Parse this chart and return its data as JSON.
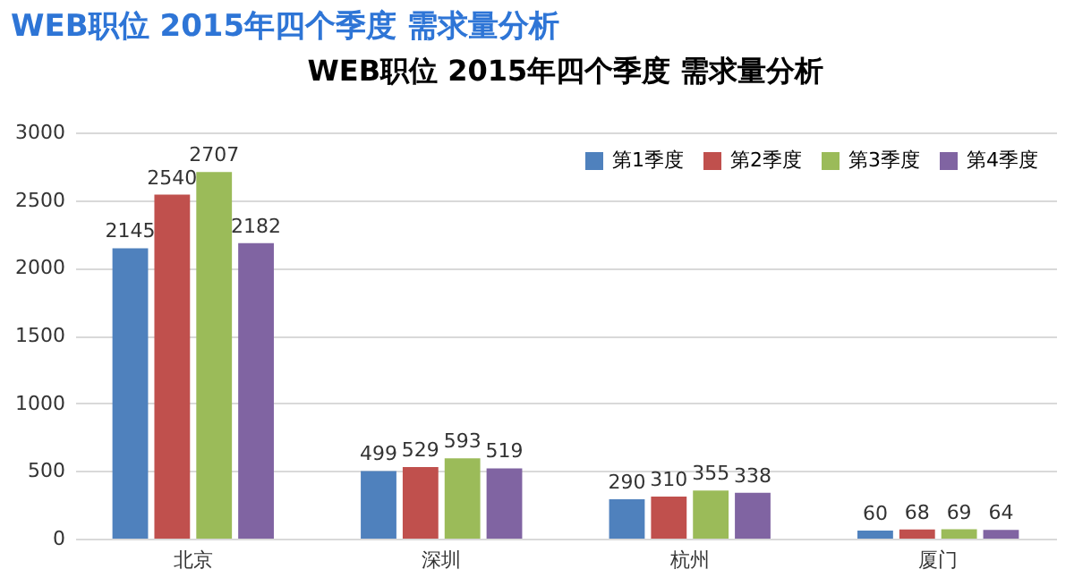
{
  "chart_data": {
    "type": "bar",
    "title": "WEB职位 2015年四个季度 需求量分析",
    "subtitle": "WEB职位 2015年四个季度 需求量分析",
    "categories": [
      "北京",
      "深圳",
      "杭州",
      "厦门"
    ],
    "series": [
      {
        "name": "第1季度",
        "color": "#4f81bd",
        "values": [
          2145,
          499,
          290,
          60
        ]
      },
      {
        "name": "第2季度",
        "color": "#c0504d",
        "values": [
          2540,
          529,
          310,
          68
        ]
      },
      {
        "name": "第3季度",
        "color": "#9bbb59",
        "values": [
          2707,
          593,
          355,
          69
        ]
      },
      {
        "name": "第4季度",
        "color": "#8064a2",
        "values": [
          2182,
          519,
          338,
          64
        ]
      }
    ],
    "ylim": [
      0,
      3000
    ],
    "yticks": [
      0,
      500,
      1000,
      1500,
      2000,
      2500,
      3000
    ],
    "grid": "y",
    "legend": "top right",
    "data_labels": true
  }
}
